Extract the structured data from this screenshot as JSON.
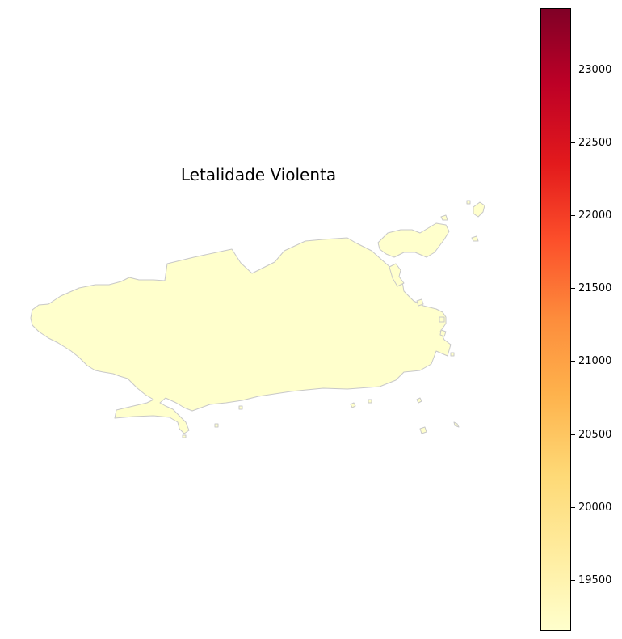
{
  "title": "Letalidade Violenta",
  "map": {
    "region_fill": "#ffffcc",
    "region_stroke": "#c8c8c8"
  },
  "colorbar": {
    "colormap": "YlOrRd",
    "min": 19150,
    "max": 23420,
    "ticks": [
      "19500",
      "20000",
      "20500",
      "21000",
      "21500",
      "22000",
      "22500",
      "23000"
    ]
  }
}
